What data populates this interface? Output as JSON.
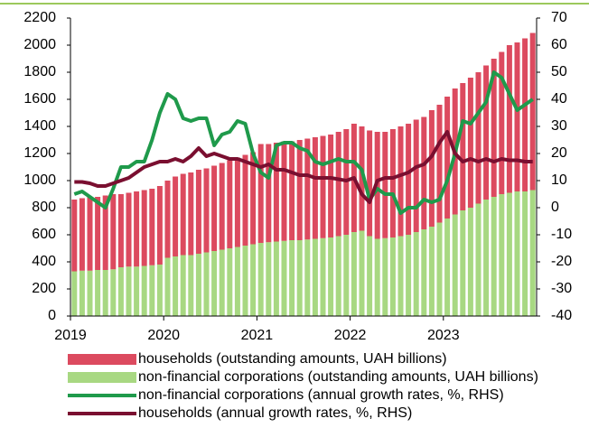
{
  "chart_data": {
    "type": "bar",
    "stacked": true,
    "categories": [
      "2019",
      null,
      null,
      null,
      null,
      null,
      null,
      null,
      null,
      null,
      null,
      null,
      "2020",
      null,
      null,
      null,
      null,
      null,
      null,
      null,
      null,
      null,
      null,
      null,
      "2021",
      null,
      null,
      null,
      null,
      null,
      null,
      null,
      null,
      null,
      null,
      null,
      "2022",
      null,
      null,
      null,
      null,
      null,
      null,
      null,
      null,
      null,
      null,
      null,
      "2023",
      null,
      null,
      null,
      null,
      null,
      null,
      null,
      null,
      null,
      null,
      null
    ],
    "series": [
      {
        "name": "households (outstanding amounts, UAH billions)",
        "type": "bar",
        "color": "#dc4a5f",
        "values": [
          530,
          535,
          545,
          540,
          550,
          555,
          540,
          545,
          555,
          560,
          565,
          580,
          570,
          590,
          600,
          610,
          620,
          620,
          630,
          640,
          650,
          660,
          670,
          680,
          730,
          725,
          730,
          735,
          730,
          740,
          745,
          750,
          755,
          760,
          770,
          780,
          800,
          770,
          780,
          790,
          785,
          800,
          810,
          820,
          830,
          830,
          860,
          870,
          900,
          930,
          940,
          960,
          970,
          990,
          1020,
          1050,
          1090,
          1100,
          1130,
          1160
        ]
      },
      {
        "name": "non-financial corporations (outstanding amounts, UAH billions)",
        "type": "bar",
        "color": "#a8d882",
        "values": [
          330,
          335,
          335,
          340,
          340,
          345,
          360,
          365,
          365,
          370,
          375,
          380,
          430,
          440,
          450,
          450,
          460,
          470,
          480,
          490,
          500,
          510,
          520,
          530,
          540,
          545,
          550,
          555,
          560,
          560,
          565,
          570,
          575,
          580,
          590,
          600,
          620,
          630,
          590,
          570,
          575,
          580,
          590,
          600,
          620,
          640,
          660,
          690,
          720,
          750,
          780,
          800,
          830,
          860,
          880,
          900,
          910,
          920,
          920,
          930
        ]
      },
      {
        "name": "non-financial corporations (annual growth rates, %, RHS)",
        "type": "line",
        "axis": "y2",
        "color": "#1f9a4b",
        "values": [
          5,
          6,
          4,
          2,
          0,
          7,
          15,
          15,
          17,
          17,
          25,
          35,
          42,
          40,
          33,
          32,
          33,
          33,
          23,
          27,
          28,
          32,
          31,
          20,
          13,
          11,
          23,
          24,
          24,
          22,
          21,
          17,
          16,
          17,
          18,
          17,
          17,
          14,
          3,
          7,
          5,
          5,
          -2,
          0,
          0,
          3,
          2,
          3,
          10,
          20,
          32,
          31,
          35,
          39,
          50,
          48,
          42,
          36,
          38,
          40
        ]
      },
      {
        "name": "households (annual growth rates, %, RHS)",
        "type": "line",
        "axis": "y2",
        "color": "#7a0f30",
        "values": [
          9.5,
          9.5,
          9,
          8,
          8,
          9,
          10,
          11,
          13,
          15,
          16,
          17,
          17,
          18,
          17,
          19,
          22,
          19,
          20,
          19,
          18,
          18,
          17,
          16,
          15,
          16,
          14,
          14,
          13,
          12,
          12,
          11,
          11,
          11,
          10.5,
          10,
          11,
          5,
          2,
          10,
          11,
          11,
          12,
          13,
          15,
          16,
          19,
          24,
          28,
          20,
          17,
          18,
          17,
          18,
          17,
          18,
          17.5,
          17.5,
          17,
          17
        ]
      }
    ],
    "ylim": [
      0,
      2200
    ],
    "yticks": [
      0,
      200,
      400,
      600,
      800,
      1000,
      1200,
      1400,
      1600,
      1800,
      2000,
      2200
    ],
    "y2lim": [
      -40,
      70
    ],
    "y2ticks": [
      -40,
      -30,
      -20,
      -10,
      0,
      10,
      20,
      30,
      40,
      50,
      60,
      70
    ],
    "grid": false
  }
}
